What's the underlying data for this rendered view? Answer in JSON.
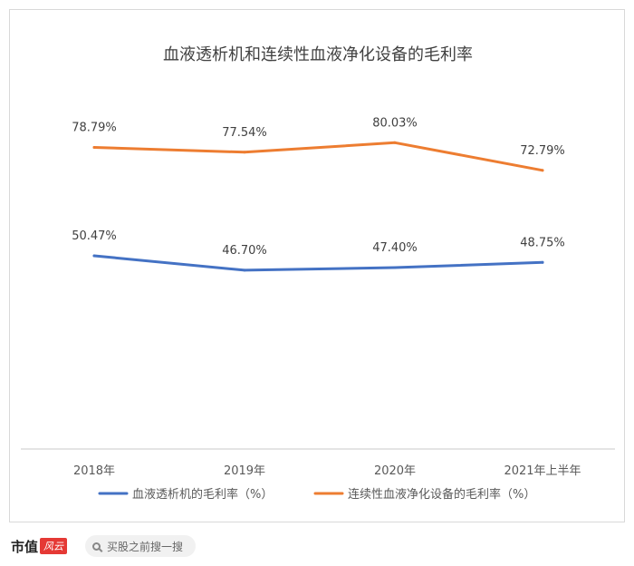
{
  "chart_data": {
    "type": "line",
    "title": "血液透析机和连续性血液净化设备的毛利率",
    "categories": [
      "2018年",
      "2019年",
      "2020年",
      "2021年上半年"
    ],
    "series": [
      {
        "name": "血液透析机的毛利率（%）",
        "values": [
          50.47,
          46.7,
          47.4,
          48.75
        ],
        "labels": [
          "50.47%",
          "46.70%",
          "47.40%",
          "48.75%"
        ],
        "color": "#4472C4"
      },
      {
        "name": "连续性血液净化设备的毛利率（%）",
        "values": [
          78.79,
          77.54,
          80.03,
          72.79
        ],
        "labels": [
          "78.79%",
          "77.54%",
          "80.03%",
          "72.79%"
        ],
        "color": "#ED7D31"
      }
    ],
    "ylim": [
      0,
      100
    ],
    "grid": false,
    "legend_position": "bottom"
  },
  "footer": {
    "logo_text": "市值",
    "logo_badge": "风云",
    "search_placeholder": "买股之前搜一搜"
  }
}
